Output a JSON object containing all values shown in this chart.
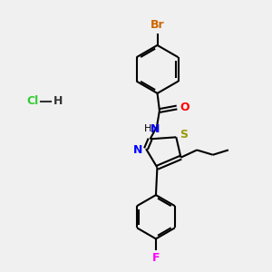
{
  "bg_color": "#f0f0f0",
  "atom_colors": {
    "Br": "#cc6600",
    "O": "#ff0000",
    "N": "#0000ff",
    "S": "#999900",
    "F": "#ff00ff",
    "Cl": "#33cc33",
    "C": "#000000",
    "H": "#000000"
  },
  "bond_color": "#000000",
  "line_width": 1.5,
  "font_size": 9
}
